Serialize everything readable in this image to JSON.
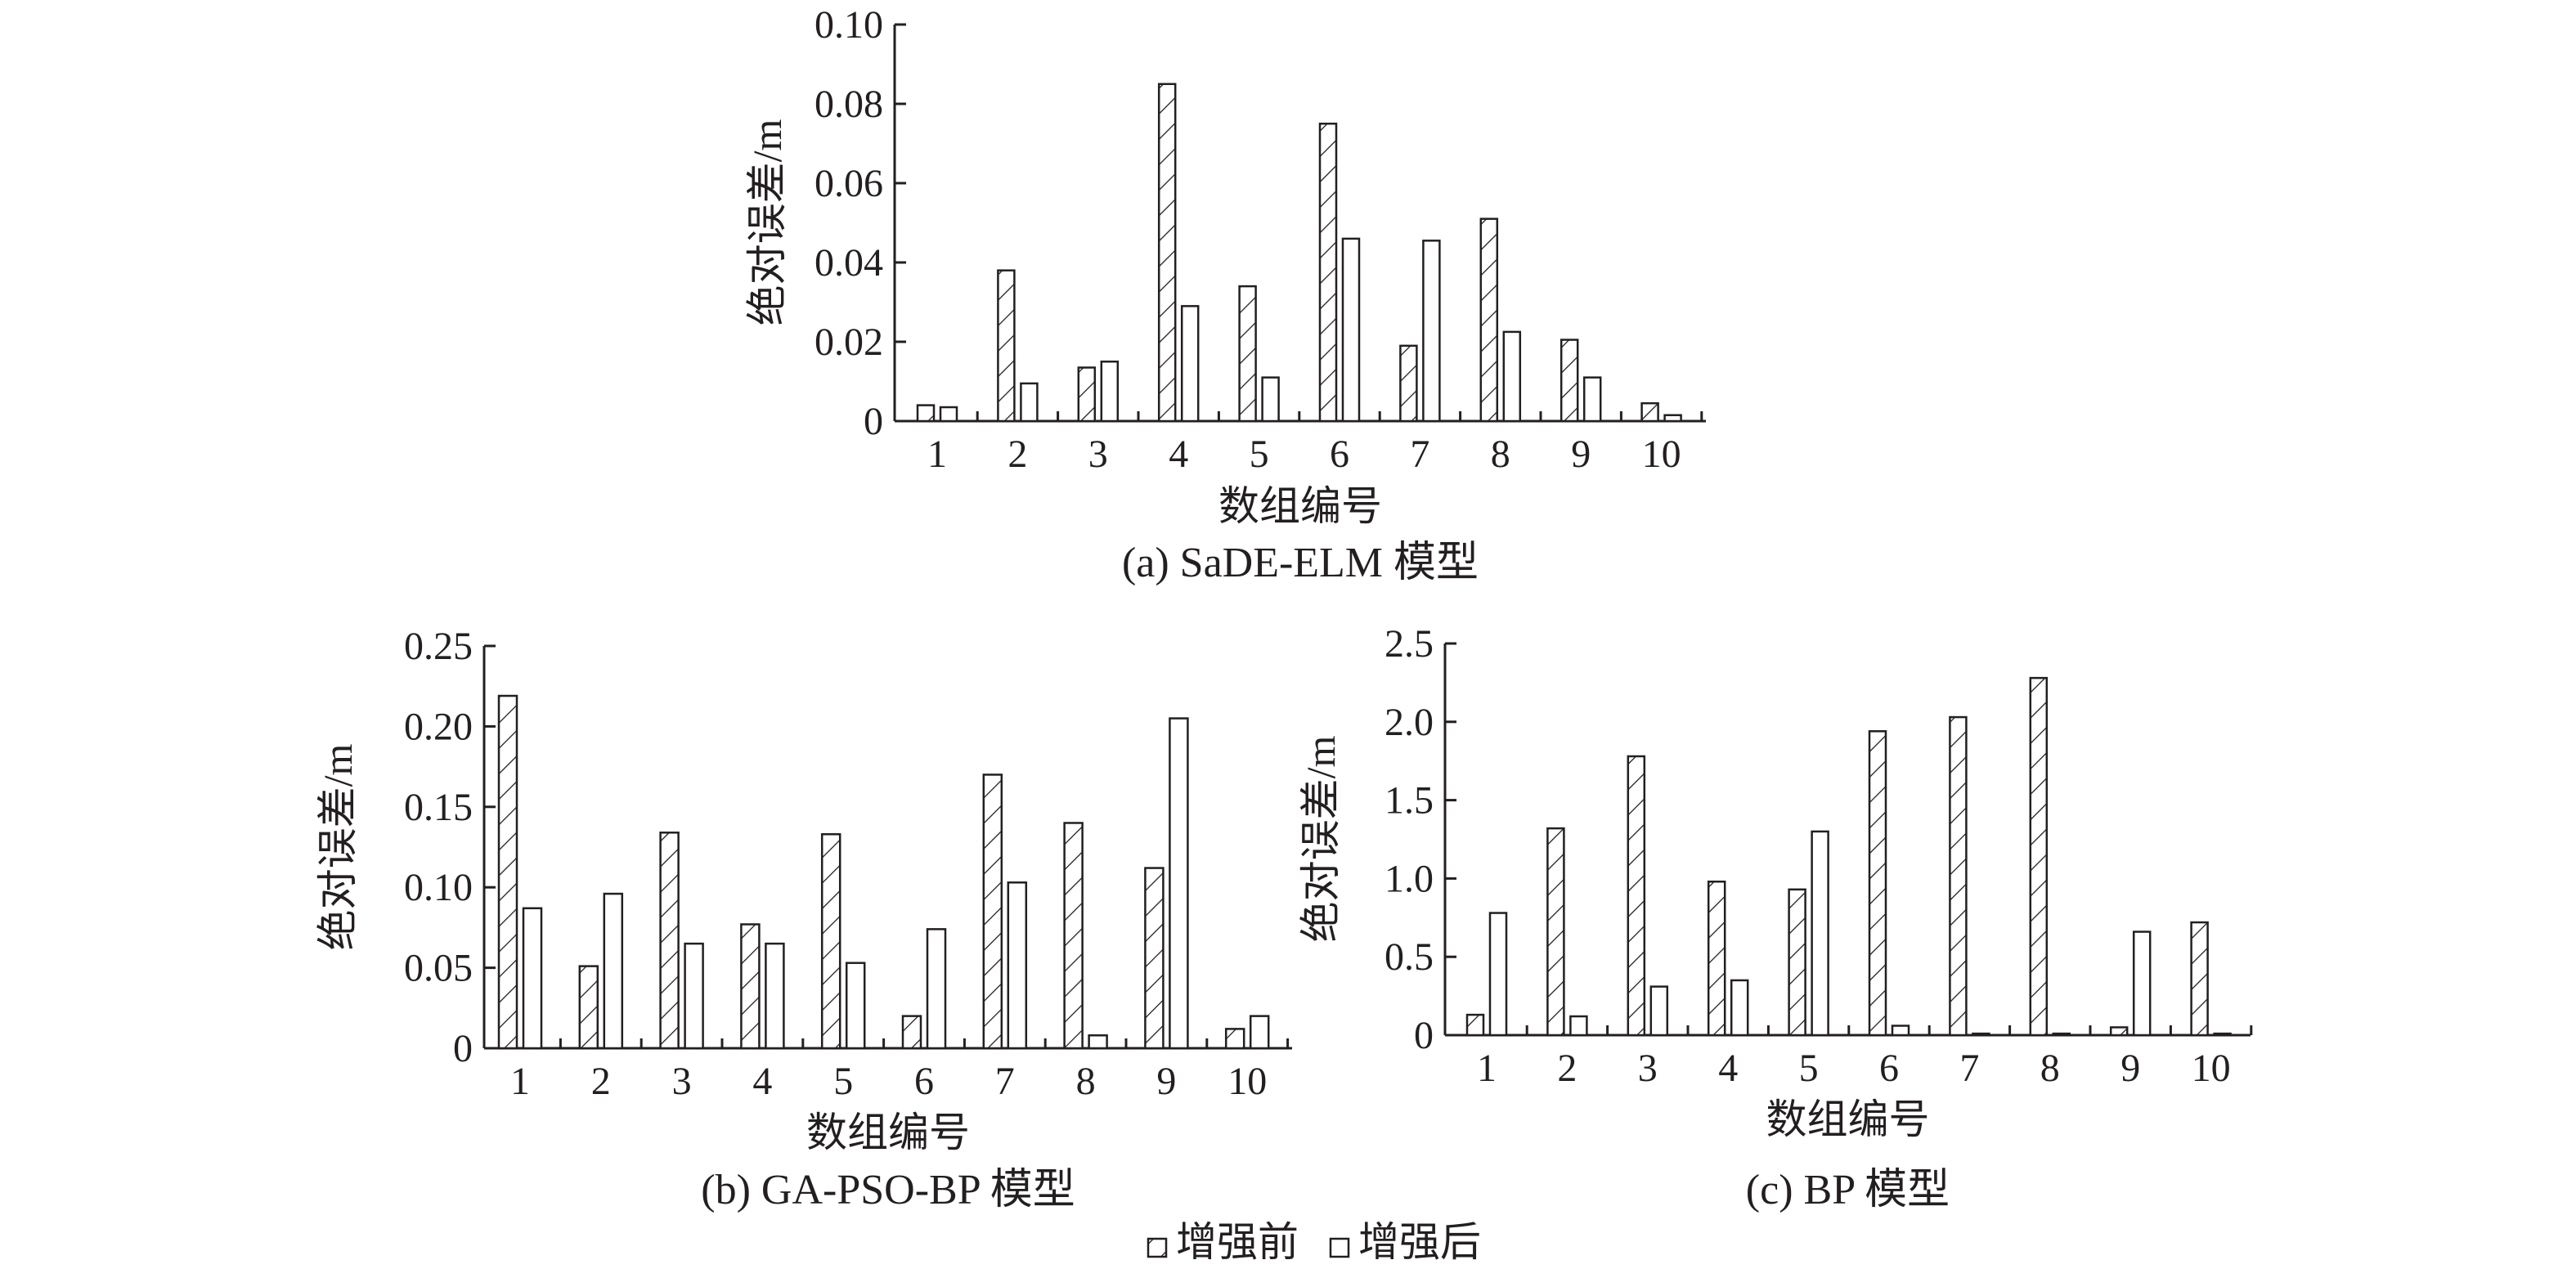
{
  "chart_data": [
    {
      "type": "bar",
      "caption": "(a) SaDE-ELM 模型",
      "xlabel": "数组编号",
      "ylabel": "绝对误差/m",
      "categories": [
        "1",
        "2",
        "3",
        "4",
        "5",
        "6",
        "7",
        "8",
        "9",
        "10"
      ],
      "ylim": [
        0,
        0.1
      ],
      "yticks": [
        "0",
        "0.02",
        "0.04",
        "0.06",
        "0.08",
        "0.10"
      ],
      "series": [
        {
          "name": "增强前",
          "values": [
            0.004,
            0.038,
            0.0135,
            0.085,
            0.034,
            0.075,
            0.019,
            0.051,
            0.0205,
            0.0045
          ]
        },
        {
          "name": "增强后",
          "values": [
            0.0035,
            0.0095,
            0.015,
            0.029,
            0.011,
            0.046,
            0.0455,
            0.0225,
            0.011,
            0.0015
          ]
        }
      ]
    },
    {
      "type": "bar",
      "caption": "(b) GA-PSO-BP 模型",
      "xlabel": "数组编号",
      "ylabel": "绝对误差/m",
      "categories": [
        "1",
        "2",
        "3",
        "4",
        "5",
        "6",
        "7",
        "8",
        "9",
        "10"
      ],
      "ylim": [
        0,
        0.25
      ],
      "yticks": [
        "0",
        "0.05",
        "0.10",
        "0.15",
        "0.20",
        "0.25"
      ],
      "series": [
        {
          "name": "增强前",
          "values": [
            0.219,
            0.051,
            0.134,
            0.077,
            0.133,
            0.02,
            0.17,
            0.14,
            0.112,
            0.012
          ]
        },
        {
          "name": "增强后",
          "values": [
            0.087,
            0.096,
            0.065,
            0.065,
            0.053,
            0.074,
            0.103,
            0.008,
            0.205,
            0.02
          ]
        }
      ]
    },
    {
      "type": "bar",
      "caption": "(c) BP 模型",
      "xlabel": "数组编号",
      "ylabel": "绝对误差/m",
      "categories": [
        "1",
        "2",
        "3",
        "4",
        "5",
        "6",
        "7",
        "8",
        "9",
        "10"
      ],
      "ylim": [
        0,
        2.5
      ],
      "yticks": [
        "0",
        "0.5",
        "1.0",
        "1.5",
        "2.0",
        "2.5"
      ],
      "series": [
        {
          "name": "增强前",
          "values": [
            0.13,
            1.32,
            1.78,
            0.98,
            0.93,
            1.94,
            2.03,
            2.28,
            0.05,
            0.72
          ]
        },
        {
          "name": "增强后",
          "values": [
            0.78,
            0.12,
            0.31,
            0.35,
            1.3,
            0.06,
            0.01,
            0.01,
            0.66,
            0.01
          ]
        }
      ]
    }
  ],
  "legend": {
    "items": [
      {
        "label": "增强前",
        "pattern": "hatched"
      },
      {
        "label": "增强后",
        "pattern": "empty"
      }
    ]
  },
  "colors": {
    "ink": "#231f20",
    "fill": "#ffffff"
  }
}
